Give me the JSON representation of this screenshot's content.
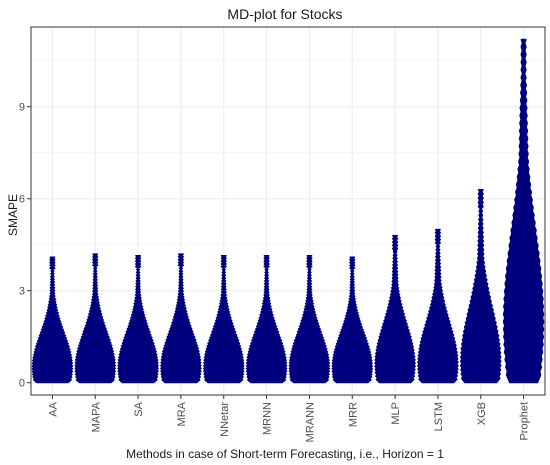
{
  "chart_data": {
    "type": "violin-density",
    "title": "MD-plot for Stocks",
    "xlabel": "Methods in case of Short-term Forecasting, i.e., Horizon = 1",
    "ylabel": "SMAPE",
    "ylim": [
      -0.4,
      11.6
    ],
    "yticks": [
      0,
      3,
      6,
      9
    ],
    "grid": true,
    "fill_color": "#00007f",
    "categories": [
      "AA",
      "MAPA",
      "SA",
      "MRA",
      "NNetar",
      "MRNN",
      "MRANN",
      "MRR",
      "MLP",
      "LSTM",
      "XGB",
      "Prophet"
    ],
    "series": [
      {
        "values": {
          "max": 4.1,
          "peak": 0.5,
          "tail_width": 0.15
        }
      },
      {
        "values": {
          "max": 4.2,
          "peak": 0.5,
          "tail_width": 0.15
        }
      },
      {
        "values": {
          "max": 4.15,
          "peak": 0.5,
          "tail_width": 0.15
        }
      },
      {
        "values": {
          "max": 4.2,
          "peak": 0.5,
          "tail_width": 0.15
        }
      },
      {
        "values": {
          "max": 4.15,
          "peak": 0.5,
          "tail_width": 0.15
        }
      },
      {
        "values": {
          "max": 4.15,
          "peak": 0.5,
          "tail_width": 0.15
        }
      },
      {
        "values": {
          "max": 4.15,
          "peak": 0.5,
          "tail_width": 0.15
        }
      },
      {
        "values": {
          "max": 4.1,
          "peak": 0.5,
          "tail_width": 0.15
        }
      },
      {
        "values": {
          "max": 4.8,
          "peak": 0.6,
          "tail_width": 0.2
        }
      },
      {
        "values": {
          "max": 5.0,
          "peak": 0.6,
          "tail_width": 0.2
        }
      },
      {
        "values": {
          "max": 6.3,
          "peak": 0.7,
          "tail_width": 0.2
        }
      },
      {
        "values": {
          "max": 11.2,
          "peak": 2.0,
          "tail_width": 0.35
        }
      }
    ]
  }
}
